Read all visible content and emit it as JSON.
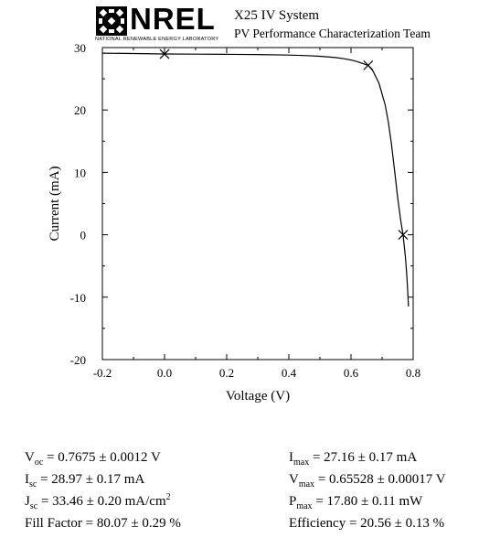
{
  "header": {
    "logo_text": "NREL",
    "logo_subtitle": "NATIONAL RENEWABLE ENERGY LABORATORY",
    "system_name": "X25 IV System",
    "team_name": "PV Performance Characterization Team"
  },
  "chart_data": {
    "type": "line",
    "title": "",
    "xlabel": "Voltage (V)",
    "ylabel": "Current (mA)",
    "xlim": [
      -0.2,
      0.8
    ],
    "ylim": [
      -20,
      30
    ],
    "xticks": [
      -0.2,
      0.0,
      0.2,
      0.4,
      0.6,
      0.8
    ],
    "xtick_labels": [
      "-0.2",
      "0.0",
      "0.2",
      "0.4",
      "0.6",
      "0.8"
    ],
    "yticks": [
      -20,
      -10,
      0,
      10,
      20,
      30
    ],
    "ytick_labels": [
      "-20",
      "-10",
      "0",
      "10",
      "20",
      "30"
    ],
    "grid": false,
    "series": [
      {
        "color": "#000000",
        "x": [
          -0.2,
          -0.1,
          0.0,
          0.1,
          0.2,
          0.3,
          0.4,
          0.45,
          0.5,
          0.55,
          0.58,
          0.6,
          0.62,
          0.64,
          0.655,
          0.67,
          0.69,
          0.71,
          0.72,
          0.73,
          0.74,
          0.75,
          0.76,
          0.7675,
          0.775,
          0.78,
          0.785
        ],
        "y": [
          29.1,
          29.05,
          28.97,
          28.95,
          28.92,
          28.88,
          28.8,
          28.72,
          28.6,
          28.4,
          28.2,
          28.0,
          27.75,
          27.4,
          27.16,
          26.3,
          24.3,
          20.8,
          18.1,
          14.6,
          10.4,
          6.0,
          2.3,
          0.0,
          -3.5,
          -6.8,
          -11.5
        ]
      }
    ],
    "markers": [
      {
        "label": "Isc",
        "x": 0.0,
        "y": 28.97
      },
      {
        "label": "Pmax",
        "x": 0.65528,
        "y": 27.16
      },
      {
        "label": "Voc",
        "x": 0.7675,
        "y": 0.0
      }
    ]
  },
  "results": {
    "left": [
      {
        "sym": "V",
        "sub": "oc",
        "text": " = 0.7675 ± 0.0012 V"
      },
      {
        "sym": "I",
        "sub": "sc",
        "text": " = 28.97 ± 0.17 mA"
      },
      {
        "sym": "J",
        "sub": "sc",
        "text": " = 33.46 ± 0.20 mA/cm",
        "sup": "2"
      },
      {
        "sym": "Fill Factor",
        "sub": "",
        "text": " = 80.07 ± 0.29 %"
      }
    ],
    "right": [
      {
        "sym": "I",
        "sub": "max",
        "text": " = 27.16 ± 0.17 mA"
      },
      {
        "sym": "V",
        "sub": "max",
        "text": " = 0.65528 ± 0.00017 V"
      },
      {
        "sym": "P",
        "sub": "max",
        "text": " = 17.80 ± 0.11 mW"
      },
      {
        "sym": "Efficiency",
        "sub": "",
        "text": " = 20.56 ± 0.13 %"
      }
    ]
  }
}
